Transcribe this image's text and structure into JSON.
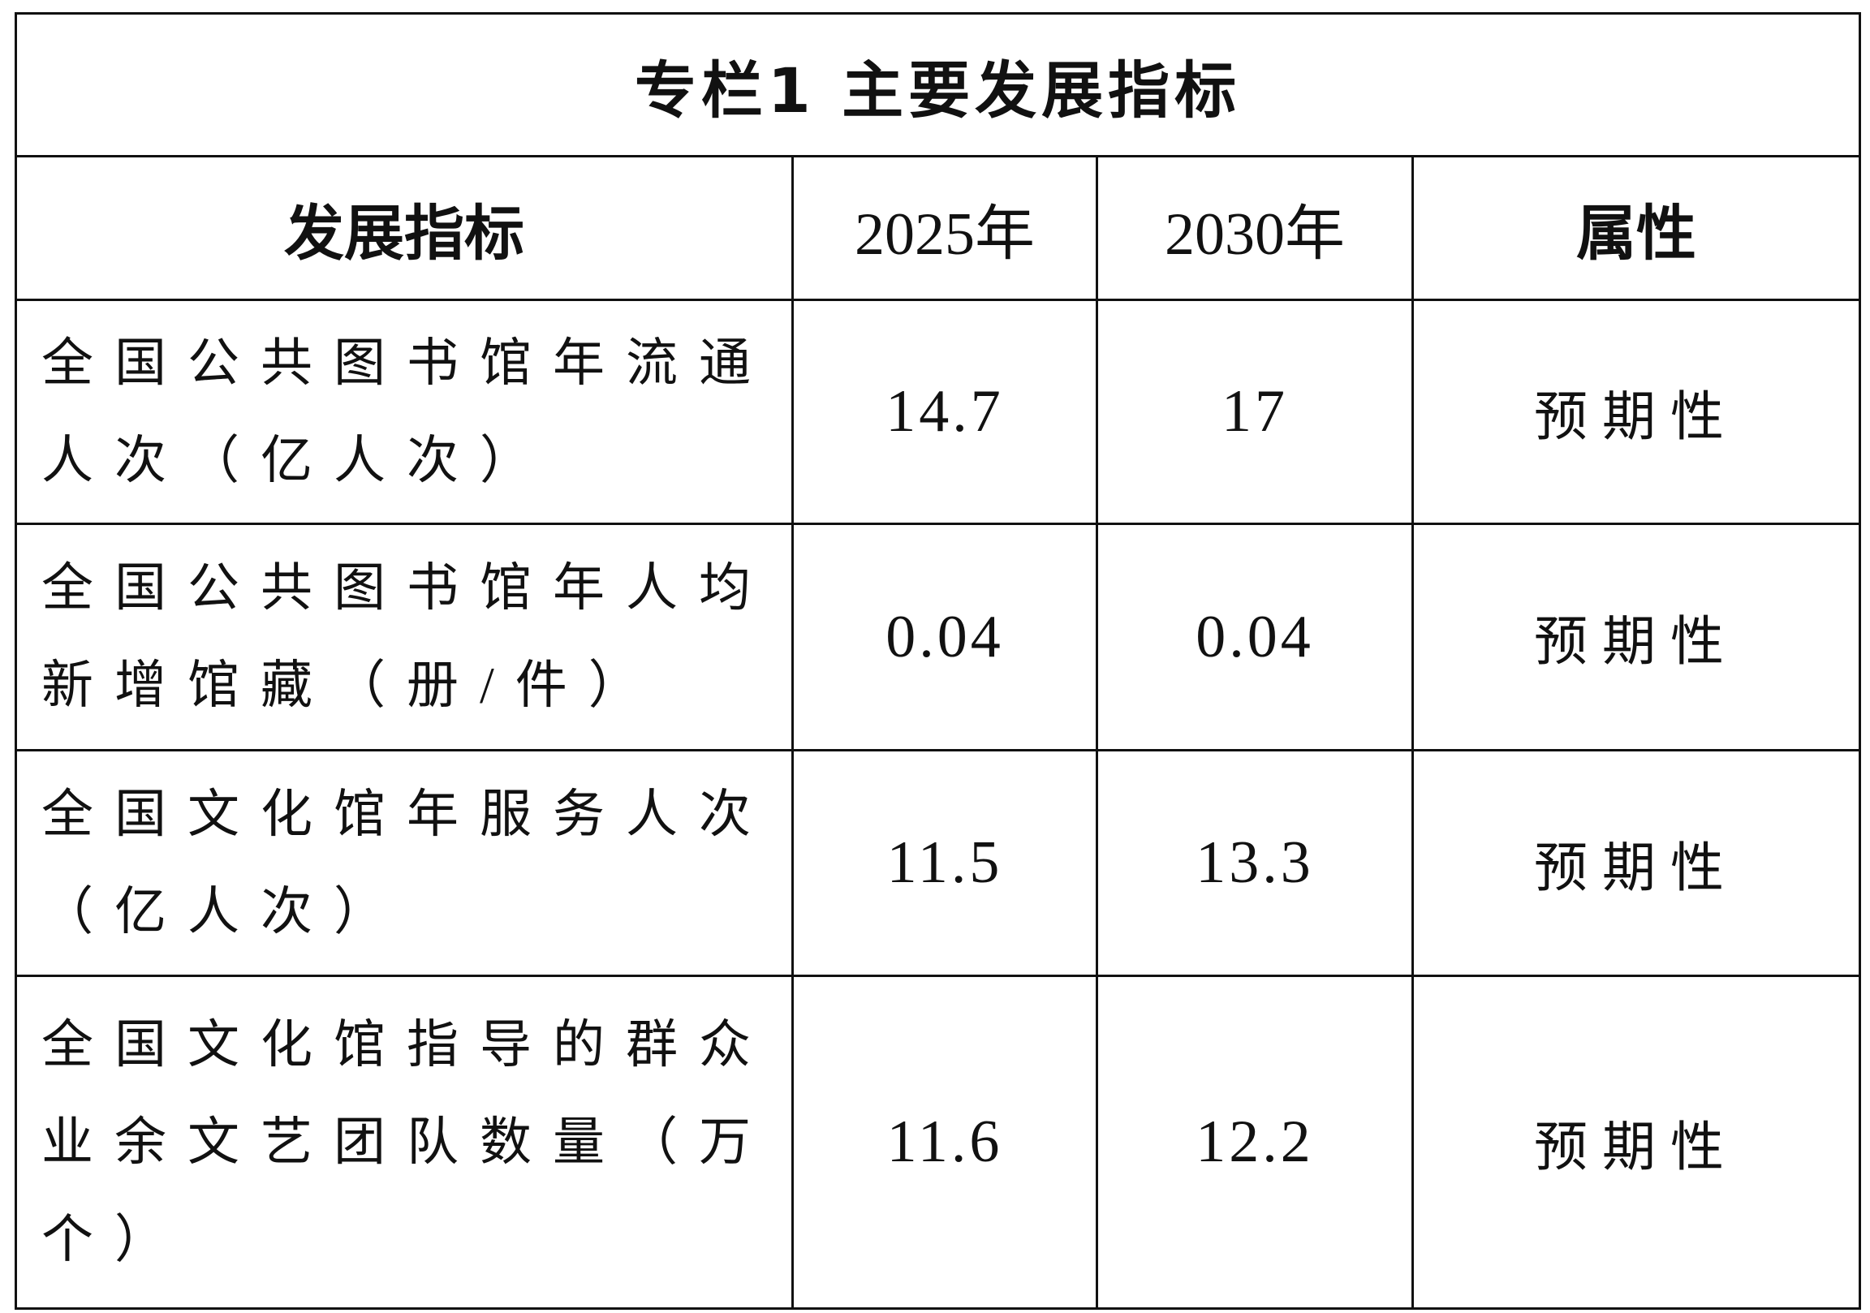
{
  "table": {
    "title": "专栏1 主要发展指标",
    "header": [
      "发展指标",
      "2025年",
      "2030年",
      "属性"
    ],
    "rows": [
      [
        "全国公共图书馆年流通人次（亿人次）",
        "14.7",
        "17",
        "预期性"
      ],
      [
        "全国公共图书馆年人均新增馆藏（册/件）",
        "0.04",
        "0.04",
        "预期性"
      ],
      [
        "全国文化馆年服务人次（亿人次）",
        "11.5",
        "13.3",
        "预期性"
      ],
      [
        "全国文化馆指导的群众业余文艺团队数量（万个）",
        "11.6",
        "12.2",
        "预期性"
      ]
    ]
  }
}
